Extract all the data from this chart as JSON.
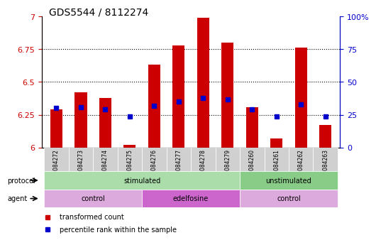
{
  "title": "GDS5544 / 8112274",
  "samples": [
    "GSM1084272",
    "GSM1084273",
    "GSM1084274",
    "GSM1084275",
    "GSM1084276",
    "GSM1084277",
    "GSM1084278",
    "GSM1084279",
    "GSM1084260",
    "GSM1084261",
    "GSM1084262",
    "GSM1084263"
  ],
  "transformed_count": [
    6.29,
    6.42,
    6.38,
    6.02,
    6.63,
    6.78,
    6.99,
    6.8,
    6.31,
    6.07,
    6.76,
    6.17
  ],
  "percentile_rank": [
    30,
    31,
    29,
    24,
    32,
    35,
    38,
    37,
    29,
    24,
    33,
    24
  ],
  "ylim_left": [
    6.0,
    7.0
  ],
  "ylim_right": [
    0,
    100
  ],
  "yticks_left": [
    6.0,
    6.25,
    6.5,
    6.75,
    7.0
  ],
  "yticks_right": [
    0,
    25,
    50,
    75,
    100
  ],
  "ytick_labels_left": [
    "6",
    "6.25",
    "6.5",
    "6.75",
    "7"
  ],
  "ytick_labels_right": [
    "0",
    "25",
    "50",
    "75",
    "100%"
  ],
  "dotted_lines": [
    6.25,
    6.5,
    6.75
  ],
  "bar_color": "#cc0000",
  "dot_color": "#0000cc",
  "bar_width": 0.5,
  "protocol_groups": [
    {
      "label": "stimulated",
      "start": 0,
      "end": 8,
      "color": "#aaddaa"
    },
    {
      "label": "unstimulated",
      "start": 8,
      "end": 12,
      "color": "#88cc88"
    }
  ],
  "agent_groups": [
    {
      "label": "control",
      "start": 0,
      "end": 4,
      "color": "#ddaadd"
    },
    {
      "label": "edelfosine",
      "start": 4,
      "end": 8,
      "color": "#cc66cc"
    },
    {
      "label": "control",
      "start": 8,
      "end": 12,
      "color": "#ddaadd"
    }
  ],
  "legend_items": [
    {
      "label": "transformed count",
      "color": "#cc0000"
    },
    {
      "label": "percentile rank within the sample",
      "color": "#0000cc"
    }
  ],
  "protocol_label": "protocol",
  "agent_label": "agent",
  "axis_label_color_left": "#cc0000",
  "axis_label_color_right": "#0000cc",
  "background_color": "#ffffff",
  "plot_area_color": "#ffffff"
}
